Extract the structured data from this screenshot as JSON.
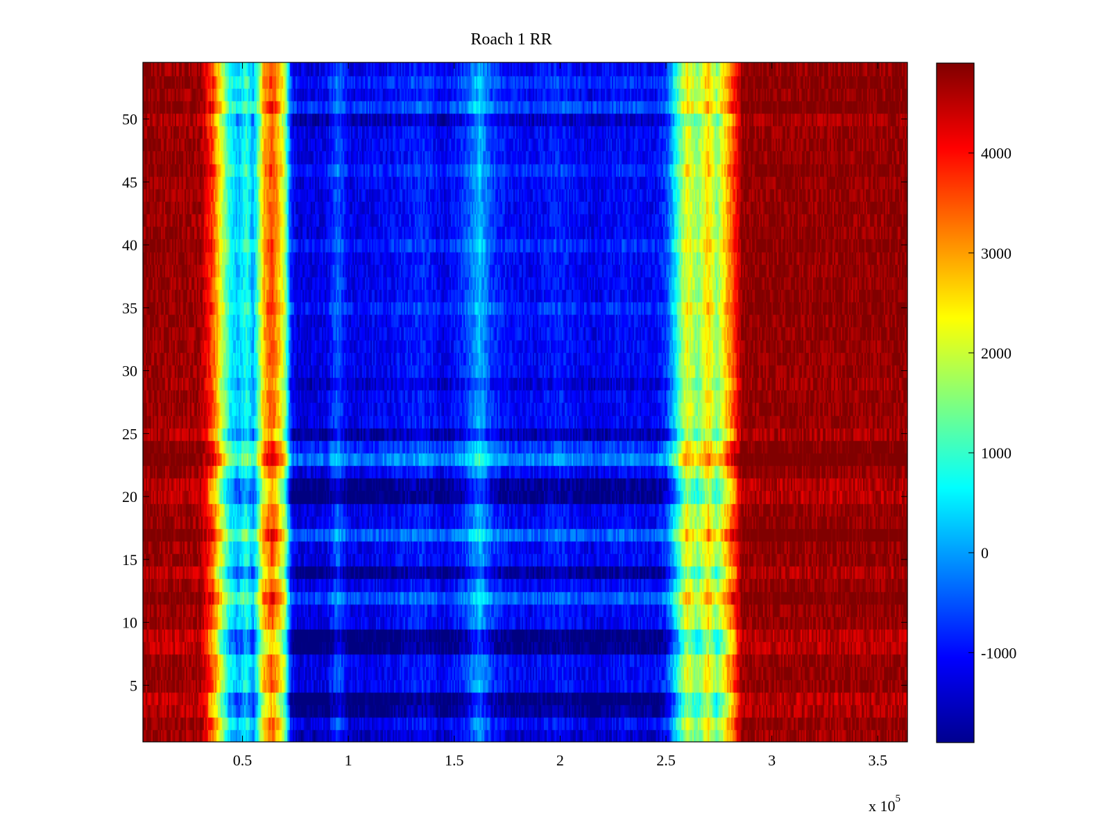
{
  "chart_data": {
    "type": "heatmap",
    "title": "Roach 1 RR",
    "xlabel": "",
    "ylabel": "",
    "x_multiplier_label": "x 10",
    "x_multiplier_exponent": "5",
    "xlim": [
      0.03,
      3.64
    ],
    "ylim": [
      0.5,
      54.5
    ],
    "x_ticks": [
      0.5,
      1,
      1.5,
      2,
      2.5,
      3,
      3.5
    ],
    "x_tick_labels": [
      "0.5",
      "1",
      "1.5",
      "2",
      "2.5",
      "3",
      "3.5"
    ],
    "y_ticks": [
      5,
      10,
      15,
      20,
      25,
      30,
      35,
      40,
      45,
      50
    ],
    "y_tick_labels": [
      "5",
      "10",
      "15",
      "20",
      "25",
      "30",
      "35",
      "40",
      "45",
      "50"
    ],
    "rows": 54,
    "colormap": "jet",
    "colorbar": {
      "range": [
        -1900,
        4900
      ],
      "ticks": [
        -1000,
        0,
        1000,
        2000,
        3000,
        4000
      ],
      "tick_labels": [
        "-1000",
        "0",
        "1000",
        "2000",
        "3000",
        "4000"
      ]
    },
    "column_profile": {
      "x": [
        0.03,
        0.3,
        0.36,
        0.4,
        0.44,
        0.48,
        0.52,
        0.55,
        0.57,
        0.6,
        0.64,
        0.67,
        0.7,
        0.73,
        0.76,
        0.9,
        0.95,
        1.0,
        1.2,
        1.35,
        1.45,
        1.55,
        1.62,
        1.68,
        1.75,
        1.85,
        2.0,
        2.15,
        2.3,
        2.45,
        2.5,
        2.55,
        2.6,
        2.65,
        2.7,
        2.74,
        2.78,
        2.82,
        2.86,
        3.64
      ],
      "value": [
        4800,
        4700,
        3600,
        2100,
        700,
        200,
        900,
        0,
        1000,
        2800,
        3600,
        2800,
        1800,
        -900,
        -1300,
        -1200,
        -400,
        -1200,
        -1100,
        -800,
        -1200,
        -700,
        200,
        -700,
        -1000,
        -1100,
        -900,
        -1200,
        -1000,
        -1100,
        -700,
        700,
        2300,
        1500,
        2600,
        1500,
        2600,
        3600,
        4800,
        4800
      ]
    },
    "row_offsets": [
      {
        "row": 1,
        "delta": -300
      },
      {
        "row": 3,
        "delta": -700
      },
      {
        "row": 4,
        "delta": -900
      },
      {
        "row": 8,
        "delta": -800
      },
      {
        "row": 9,
        "delta": -900
      },
      {
        "row": 12,
        "delta": 600
      },
      {
        "row": 14,
        "delta": -700
      },
      {
        "row": 17,
        "delta": 700
      },
      {
        "row": 20,
        "delta": -800
      },
      {
        "row": 21,
        "delta": -700
      },
      {
        "row": 23,
        "delta": 900
      },
      {
        "row": 24,
        "delta": 400
      },
      {
        "row": 25,
        "delta": -500
      },
      {
        "row": 29,
        "delta": -300
      },
      {
        "row": 35,
        "delta": 300
      },
      {
        "row": 40,
        "delta": 300
      },
      {
        "row": 46,
        "delta": 300
      },
      {
        "row": 50,
        "delta": -400
      },
      {
        "row": 51,
        "delta": 500
      },
      {
        "row": 53,
        "delta": 300
      }
    ]
  }
}
